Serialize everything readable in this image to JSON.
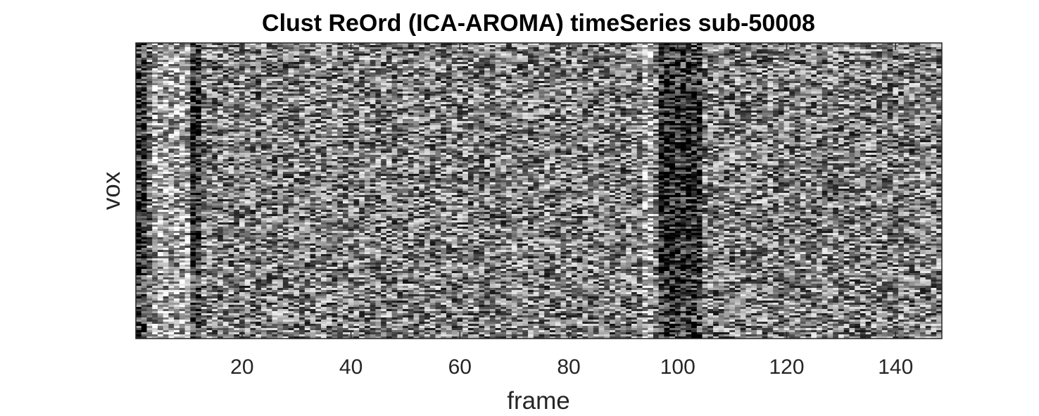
{
  "chart_data": {
    "type": "heatmap",
    "title": "Clust ReOrd (ICA-AROMA) timeSeries sub-50008",
    "xlabel": "frame",
    "ylabel": "vox",
    "xlim": [
      0.5,
      148.5
    ],
    "x_ticks": [
      20,
      40,
      60,
      80,
      100,
      120,
      140
    ],
    "x_tick_labels": [
      "20",
      "40",
      "60",
      "80",
      "100",
      "120",
      "140"
    ],
    "y_ticks": [],
    "n_frames": 148,
    "colormap": "gray",
    "grid": false,
    "legend": "none",
    "dark_bands_frames": [
      [
        1,
        2
      ],
      [
        11,
        12
      ],
      [
        97,
        104
      ]
    ],
    "bright_bands_frames": [
      [
        4,
        10
      ],
      [
        94,
        95
      ]
    ]
  },
  "colors": {
    "background": "#ffffff",
    "axis": "#262626",
    "text": "#000000"
  }
}
